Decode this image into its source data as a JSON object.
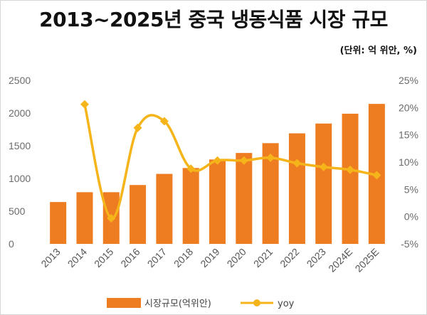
{
  "title": "2013~2025년 중국 냉동식품 시장 규모",
  "unit_note": "(단위: 억 위안, %)",
  "colors": {
    "bars": "#ee7d22",
    "line": "#f5b41a",
    "left_axis_text": "#6b6b6b",
    "right_axis_text": "#9c9c9c"
  },
  "chart_data": {
    "type": "bar",
    "categories": [
      "2013",
      "2014",
      "2015",
      "2016",
      "2017",
      "2018",
      "2019",
      "2020",
      "2021",
      "2022",
      "2023",
      "2024E",
      "2025E"
    ],
    "series": [
      {
        "name": "시장규모(억위안)",
        "type": "bar",
        "axis": "left",
        "values": [
          640,
          790,
          790,
          900,
          1070,
          1160,
          1290,
          1390,
          1540,
          1690,
          1840,
          1990,
          2140
        ]
      },
      {
        "name": "yoy",
        "type": "line",
        "axis": "right",
        "values": [
          null,
          20.6,
          -0.3,
          16.3,
          17.5,
          8.8,
          10.3,
          10.3,
          10.8,
          9.8,
          9.1,
          8.6,
          7.6
        ]
      }
    ],
    "left_axis": {
      "ylim": [
        0,
        2500
      ],
      "ticks": [
        "0",
        "500",
        "1000",
        "1500",
        "2000",
        "2500"
      ]
    },
    "right_axis": {
      "ylim": [
        -5,
        25
      ],
      "ticks": [
        "-5%",
        "0%",
        "5%",
        "10%",
        "15%",
        "20%",
        "25%"
      ]
    },
    "grid": false,
    "legend_position": "bottom"
  }
}
